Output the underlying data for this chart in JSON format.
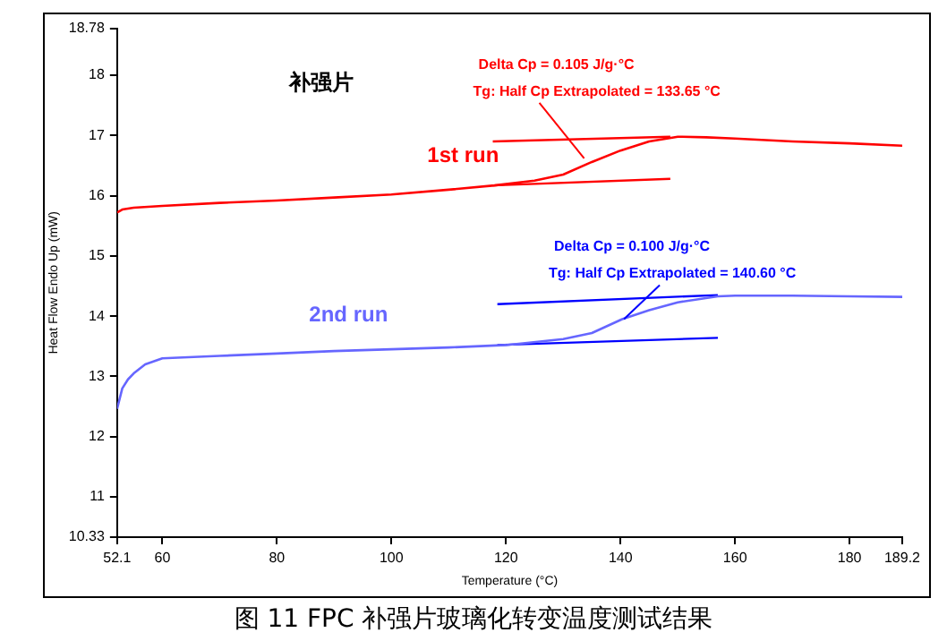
{
  "chart_data": {
    "type": "line",
    "title": "补强片",
    "xlabel": "Temperature (°C)",
    "ylabel": "Heat Flow Endo Up (mW)",
    "xlim": [
      52.1,
      189.2
    ],
    "xticks": [
      52.1,
      60,
      80,
      100,
      120,
      140,
      160,
      180,
      189.2
    ],
    "ylim": [
      10.33,
      18.78
    ],
    "yticks": [
      10.33,
      11,
      12,
      13,
      14,
      15,
      16,
      17,
      18,
      18.78
    ],
    "grid": false,
    "legend": false,
    "marker": "none",
    "line_style": "solid",
    "series": [
      {
        "name": "1st run",
        "color": "#ff0000",
        "x": [
          52.1,
          53,
          55,
          60,
          70,
          80,
          90,
          100,
          110,
          118,
          125,
          130,
          135,
          140,
          145,
          150,
          155,
          160,
          170,
          180,
          189.2
        ],
        "values": [
          15.72,
          15.77,
          15.8,
          15.83,
          15.88,
          15.92,
          15.97,
          16.02,
          16.1,
          16.17,
          16.25,
          16.35,
          16.56,
          16.75,
          16.9,
          16.98,
          16.97,
          16.95,
          16.9,
          16.87,
          16.83
        ]
      },
      {
        "color": "#ff0000",
        "x": [
          117.7,
          148.7
        ],
        "values": [
          16.9,
          16.98
        ]
      },
      {
        "color": "#ff0000",
        "x": [
          117.7,
          148.7
        ],
        "values": [
          16.17,
          16.28
        ]
      },
      {
        "name": "2nd run",
        "color": "#6666ff",
        "x": [
          52.1,
          53,
          54,
          55,
          57,
          60,
          70,
          80,
          90,
          100,
          110,
          120,
          130,
          135,
          140.3,
          145,
          150,
          157,
          160,
          170,
          180,
          189.2
        ],
        "values": [
          12.46,
          12.8,
          12.95,
          13.05,
          13.2,
          13.3,
          13.34,
          13.38,
          13.42,
          13.45,
          13.48,
          13.52,
          13.62,
          13.72,
          13.95,
          14.1,
          14.23,
          14.33,
          14.34,
          14.34,
          14.33,
          14.32
        ]
      },
      {
        "color": "#0000ff",
        "x": [
          118.5,
          157
        ],
        "values": [
          14.2,
          14.35
        ]
      },
      {
        "color": "#0000ff",
        "x": [
          118.5,
          157
        ],
        "values": [
          13.52,
          13.64
        ]
      }
    ],
    "annotations": [
      {
        "text": "Delta Cp = 0.105 J/g·°C\nTg: Half Cp Extrapolated = 133.65 °C",
        "x": 133.65,
        "y": 16.62
      },
      {
        "text": "Delta Cp = 0.100 J/g·°C\nTg: Half Cp Extrapolated = 140.60 °C",
        "x": 140.6,
        "y": 13.95
      },
      "图 11 FPC 补强片玻璃化转变温度测试结果"
    ]
  }
}
